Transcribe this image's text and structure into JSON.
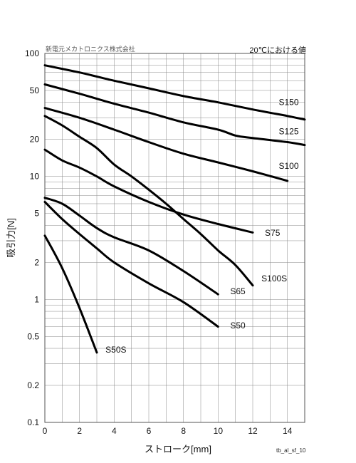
{
  "header": {
    "company": "新電元メカトロニクス株式会社",
    "condition": "20℃における値"
  },
  "footer": {
    "figure_id": "tb_al_sf_10"
  },
  "chart_data": {
    "type": "line",
    "xlabel": "ストローク[mm]",
    "ylabel": "吸引力[N]",
    "xlim": [
      0,
      15
    ],
    "ylim": [
      0.1,
      100
    ],
    "yscale": "log",
    "grid": true,
    "x_ticks": [
      0,
      2,
      4,
      6,
      8,
      10,
      12,
      14
    ],
    "y_ticks": [
      0.1,
      0.2,
      0.5,
      1,
      2,
      5,
      10,
      20,
      50,
      100
    ],
    "y_tick_labels": [
      "0.1",
      "0.2",
      "0.5",
      "1",
      "2",
      "5",
      "10",
      "20",
      "50",
      "100"
    ],
    "series": [
      {
        "name": "S150",
        "label_at": [
          13.5,
          38
        ],
        "points": [
          [
            0,
            80
          ],
          [
            2,
            70
          ],
          [
            4,
            60
          ],
          [
            6,
            52
          ],
          [
            8,
            45
          ],
          [
            10,
            40
          ],
          [
            12,
            35
          ],
          [
            14,
            31
          ],
          [
            15,
            29
          ]
        ]
      },
      {
        "name": "S125",
        "label_at": [
          13.5,
          22
        ],
        "points": [
          [
            0,
            56
          ],
          [
            2,
            47
          ],
          [
            4,
            39
          ],
          [
            6,
            33
          ],
          [
            8,
            27.5
          ],
          [
            10,
            24
          ],
          [
            11,
            21.5
          ],
          [
            12,
            20.5
          ],
          [
            14,
            19
          ],
          [
            15,
            18
          ]
        ]
      },
      {
        "name": "S100",
        "label_at": [
          13.5,
          11.5
        ],
        "points": [
          [
            0,
            36
          ],
          [
            2,
            30
          ],
          [
            4,
            24
          ],
          [
            6,
            19
          ],
          [
            8,
            15.3
          ],
          [
            10,
            13
          ],
          [
            12,
            11
          ],
          [
            14,
            9.2
          ]
        ]
      },
      {
        "name": "S75",
        "label_at": [
          12.7,
          3.3
        ],
        "points": [
          [
            0,
            16.5
          ],
          [
            1,
            13.5
          ],
          [
            2,
            11.8
          ],
          [
            3,
            10
          ],
          [
            4,
            8.3
          ],
          [
            6,
            6.2
          ],
          [
            8,
            4.9
          ],
          [
            10,
            4.1
          ],
          [
            12,
            3.5
          ]
        ]
      },
      {
        "name": "S100S",
        "label_at": [
          12.5,
          1.4
        ],
        "points": [
          [
            0,
            31
          ],
          [
            1,
            26
          ],
          [
            2,
            21
          ],
          [
            3,
            17
          ],
          [
            4,
            12.5
          ],
          [
            5,
            10
          ],
          [
            6,
            7.8
          ],
          [
            7,
            6
          ],
          [
            8,
            4.5
          ],
          [
            9,
            3.4
          ],
          [
            10,
            2.5
          ],
          [
            11,
            1.9
          ],
          [
            12,
            1.3
          ]
        ]
      },
      {
        "name": "S65",
        "label_at": [
          10.7,
          1.1
        ],
        "points": [
          [
            0,
            6.7
          ],
          [
            1,
            6
          ],
          [
            2,
            4.8
          ],
          [
            3,
            3.8
          ],
          [
            4,
            3.2
          ],
          [
            6,
            2.5
          ],
          [
            8,
            1.7
          ],
          [
            10,
            1.1
          ]
        ]
      },
      {
        "name": "S50",
        "label_at": [
          10.7,
          0.58
        ],
        "points": [
          [
            0,
            6.2
          ],
          [
            1,
            4.5
          ],
          [
            2,
            3.4
          ],
          [
            3,
            2.6
          ],
          [
            4,
            2
          ],
          [
            6,
            1.35
          ],
          [
            8,
            0.95
          ],
          [
            10,
            0.6
          ]
        ]
      },
      {
        "name": "S50S",
        "label_at": [
          3.5,
          0.37
        ],
        "points": [
          [
            0,
            3.3
          ],
          [
            1,
            1.8
          ],
          [
            2,
            0.85
          ],
          [
            3,
            0.37
          ]
        ]
      }
    ]
  }
}
